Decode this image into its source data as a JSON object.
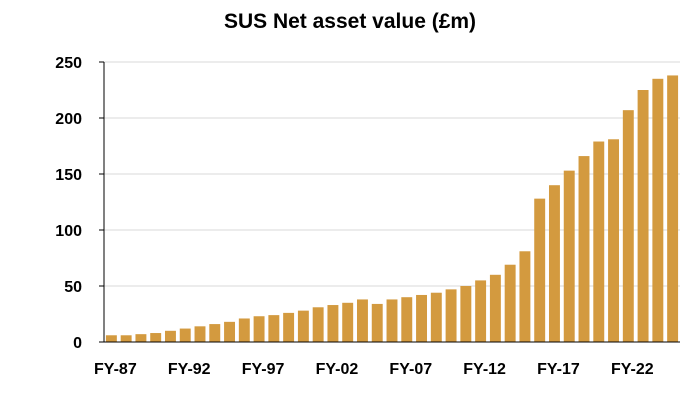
{
  "chart_data": {
    "type": "bar",
    "title": "SUS Net asset value (£m)",
    "xlabel": "",
    "ylabel": "",
    "ylim": [
      0,
      250
    ],
    "yticks": [
      0,
      50,
      100,
      150,
      200,
      250
    ],
    "grid": true,
    "bar_color": "#D39A3F",
    "grid_color": "#D9D9D9",
    "categories": [
      "FY-87",
      "FY-88",
      "FY-89",
      "FY-90",
      "FY-91",
      "FY-92",
      "FY-93",
      "FY-94",
      "FY-95",
      "FY-96",
      "FY-97",
      "FY-98",
      "FY-99",
      "FY-00",
      "FY-01",
      "FY-02",
      "FY-03",
      "FY-04",
      "FY-05",
      "FY-06",
      "FY-07",
      "FY-08",
      "FY-09",
      "FY-10",
      "FY-11",
      "FY-12",
      "FY-13",
      "FY-14",
      "FY-15",
      "FY-16",
      "FY-17",
      "FY-18",
      "FY-19",
      "FY-20",
      "FY-21",
      "FY-22",
      "FY-23",
      "FY-24",
      "FY-25"
    ],
    "visible_xtick_labels": [
      "FY-87",
      "FY-92",
      "FY-97",
      "FY-02",
      "FY-07",
      "FY-12",
      "FY-17",
      "FY-22"
    ],
    "values": [
      6,
      6,
      7,
      8,
      10,
      12,
      14,
      16,
      18,
      21,
      23,
      24,
      26,
      28,
      31,
      33,
      35,
      38,
      34,
      38,
      40,
      42,
      44,
      47,
      50,
      55,
      60,
      69,
      81,
      128,
      140,
      153,
      166,
      179,
      181,
      207,
      225,
      235,
      238
    ]
  }
}
